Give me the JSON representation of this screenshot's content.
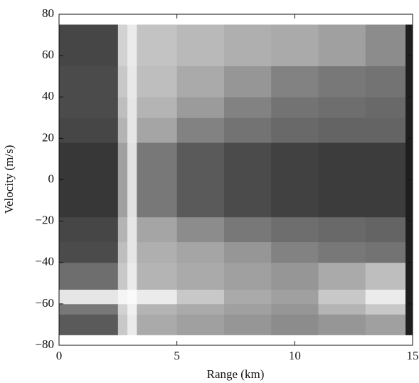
{
  "chart_data": {
    "type": "heatmap",
    "x_label": "Range (km)",
    "y_label": "Velocity (m/s)",
    "colormap": "gray",
    "x_edges": [
      0,
      2.5,
      2.9,
      3.3,
      5,
      7,
      9,
      11,
      13,
      14.7,
      15
    ],
    "y_edges": [
      -75,
      -65,
      -60,
      -53,
      -40,
      -30,
      -18,
      18,
      30,
      40,
      55,
      75
    ],
    "z": [
      [
        90,
        200,
        235,
        170,
        160,
        150,
        140,
        150,
        160,
        30
      ],
      [
        120,
        210,
        240,
        180,
        170,
        160,
        150,
        180,
        200,
        30
      ],
      [
        230,
        245,
        250,
        235,
        200,
        170,
        160,
        200,
        235,
        30
      ],
      [
        110,
        200,
        235,
        180,
        170,
        160,
        150,
        170,
        190,
        30
      ],
      [
        75,
        190,
        230,
        175,
        165,
        150,
        130,
        120,
        115,
        30
      ],
      [
        70,
        180,
        230,
        165,
        140,
        120,
        110,
        105,
        100,
        30
      ],
      [
        55,
        160,
        225,
        120,
        90,
        75,
        65,
        60,
        60,
        30
      ],
      [
        70,
        180,
        230,
        165,
        130,
        115,
        105,
        100,
        100,
        30
      ],
      [
        75,
        190,
        230,
        180,
        155,
        130,
        115,
        110,
        105,
        30
      ],
      [
        75,
        200,
        232,
        190,
        170,
        150,
        130,
        120,
        115,
        30
      ],
      [
        70,
        210,
        235,
        195,
        185,
        175,
        170,
        160,
        140,
        30
      ]
    ],
    "xlim": [
      0,
      15
    ],
    "ylim": [
      -80,
      80
    ],
    "xticks": [
      0,
      5,
      10,
      15
    ],
    "yticks": [
      {
        "value": -80,
        "label": "−80"
      },
      {
        "value": -60,
        "label": "−60"
      },
      {
        "value": -40,
        "label": "−40"
      },
      {
        "value": -20,
        "label": "−20"
      },
      0,
      20,
      40,
      60,
      80
    ]
  }
}
